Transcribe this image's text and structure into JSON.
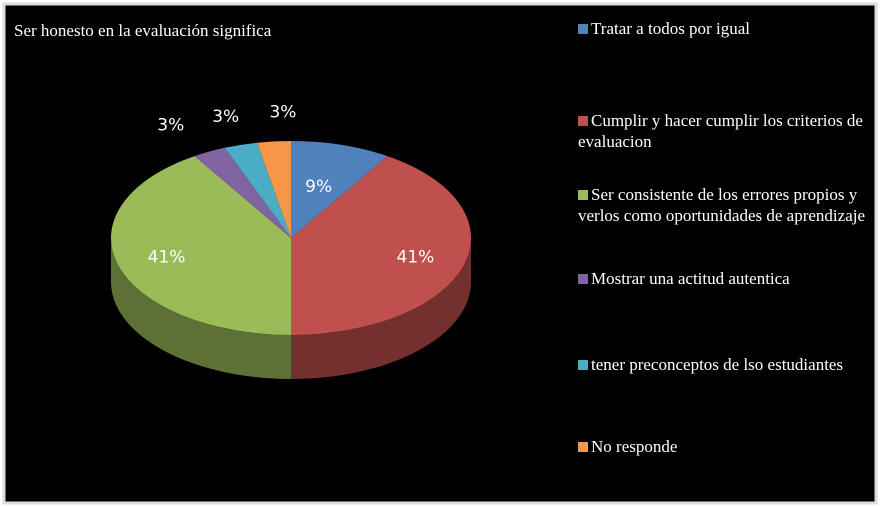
{
  "chart_data": {
    "type": "pie3d",
    "title": "Ser honesto  en la evaluación significa",
    "categories": [
      "Tratar a todos por igual",
      "Cumplir y hacer cumplir los criterios de evaluacion",
      "Ser consistente de los errores propios y verlos como oportunidades de aprendizaje",
      "Mostrar una actitud autentica",
      "tener preconceptos de lso estudiantes",
      "No responde"
    ],
    "values": [
      9,
      41,
      41,
      3,
      3,
      3
    ],
    "value_labels": [
      "9%",
      "41%",
      "41%",
      "3%",
      "3%",
      "3%"
    ],
    "colors": [
      "#4f81bd",
      "#c0504d",
      "#9bbb59",
      "#8064a2",
      "#4bacc6",
      "#f79646"
    ],
    "legend": "right"
  }
}
